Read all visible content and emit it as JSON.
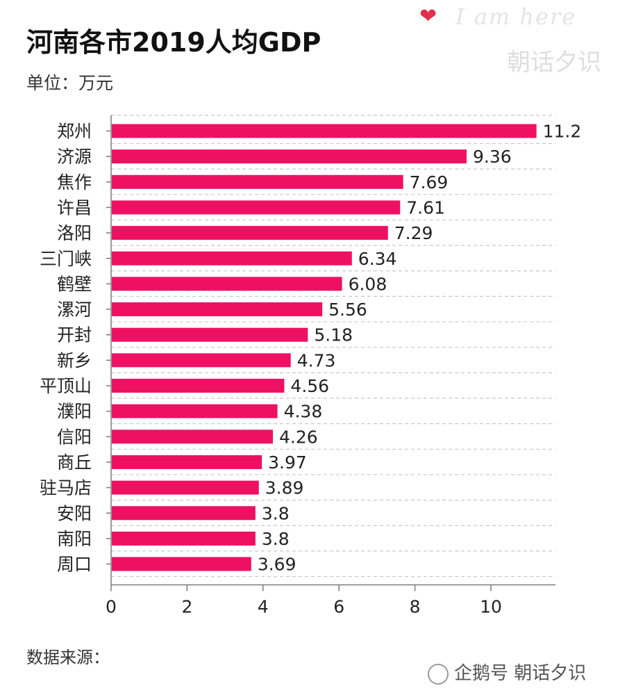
{
  "header": {
    "title": "河南各市2019人均GDP",
    "subtitle": "单位：万元"
  },
  "footer": {
    "source": "数据来源："
  },
  "watermark": {
    "script": "I am here",
    "name": "朝话夕识",
    "bottom": "企鹅号 朝话夕识",
    "heart_icon": "heart-icon",
    "penguin_icon": "penguin-icon"
  },
  "colors": {
    "bar": "#ee1163",
    "grid": "#c8c8c8",
    "axis": "#7a7a7a",
    "heart": "#e0304a"
  },
  "chart_data": {
    "type": "bar",
    "orientation": "horizontal",
    "categories": [
      "郑州",
      "济源",
      "焦作",
      "许昌",
      "洛阳",
      "三门峡",
      "鹤壁",
      "漯河",
      "开封",
      "新乡",
      "平顶山",
      "濮阳",
      "信阳",
      "商丘",
      "驻马店",
      "安阳",
      "南阳",
      "周口"
    ],
    "values": [
      11.2,
      9.36,
      7.69,
      7.61,
      7.29,
      6.34,
      6.08,
      5.56,
      5.18,
      4.73,
      4.56,
      4.38,
      4.26,
      3.97,
      3.89,
      3.8,
      3.8,
      3.69
    ],
    "data_labels": [
      "11.2",
      "9.36",
      "7.69",
      "7.61",
      "7.29",
      "6.34",
      "6.08",
      "5.56",
      "5.18",
      "4.73",
      "4.56",
      "4.38",
      "4.26",
      "3.97",
      "3.89",
      "3.8",
      "3.8",
      "3.69"
    ],
    "xticks": [
      0,
      2,
      4,
      6,
      8,
      10
    ],
    "xlim": [
      0,
      11.7
    ],
    "grid": true,
    "grid_style": "dashed horizontal",
    "legend": "none"
  }
}
